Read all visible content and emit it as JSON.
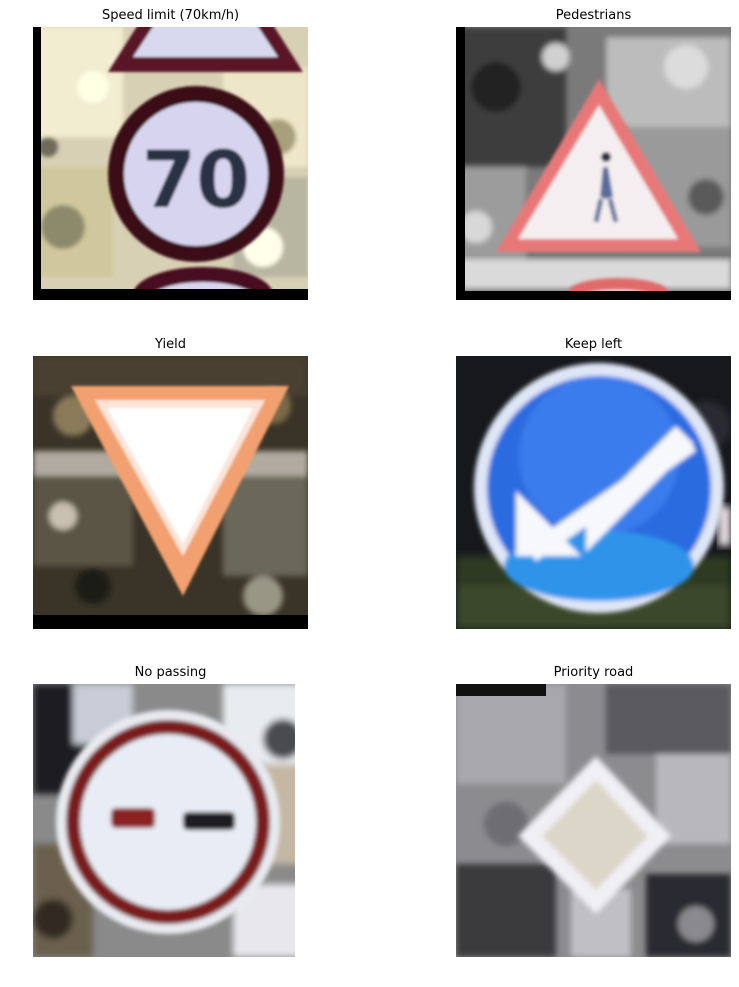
{
  "panels": [
    {
      "title": "Speed limit (70km/h)",
      "sign_text": "70",
      "scene": "speed-limit-sign"
    },
    {
      "title": "Pedestrians",
      "scene": "pedestrians-warning-sign"
    },
    {
      "title": "Yield",
      "scene": "yield-sign"
    },
    {
      "title": "Keep left",
      "scene": "keep-left-sign"
    },
    {
      "title": "No passing",
      "scene": "no-passing-sign"
    },
    {
      "title": "Priority road",
      "scene": "priority-road-sign"
    }
  ]
}
